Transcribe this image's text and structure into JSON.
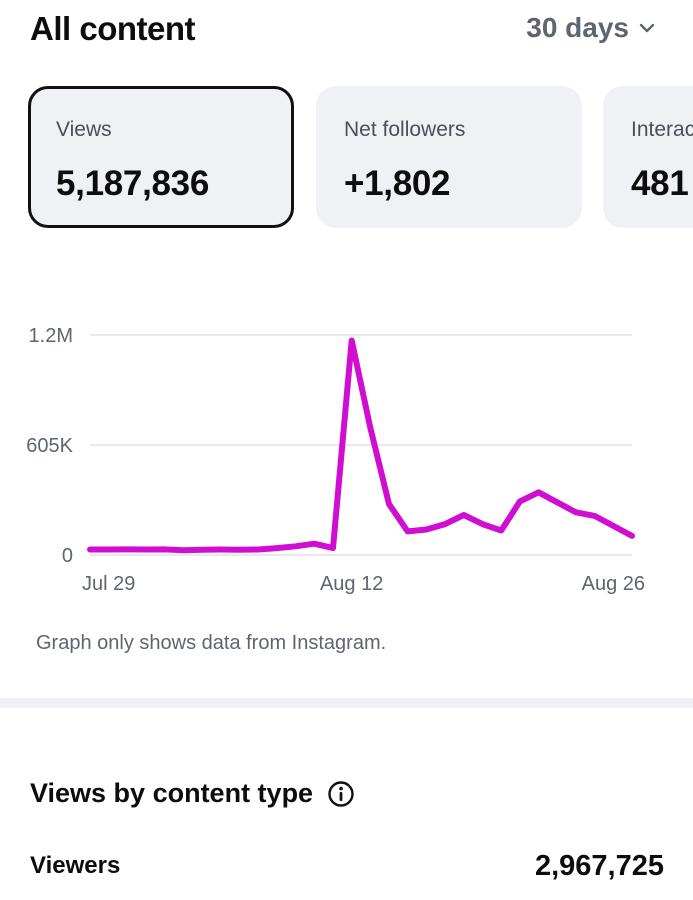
{
  "header": {
    "title": "All content",
    "range_label": "30 days"
  },
  "cards": [
    {
      "label": "Views",
      "value": "5,187,836",
      "selected": true
    },
    {
      "label": "Net followers",
      "value": "+1,802",
      "selected": false
    },
    {
      "label": "Interactions",
      "value": "481",
      "selected": false
    }
  ],
  "chart_data": {
    "type": "line",
    "series": [
      {
        "color": "#d00ed1",
        "values": [
          30000,
          30000,
          31000,
          30000,
          31000,
          26000,
          29000,
          30000,
          29000,
          30000,
          38000,
          48000,
          62000,
          38000,
          1180000,
          700000,
          280000,
          130000,
          140000,
          170000,
          220000,
          170000,
          135000,
          295000,
          345000,
          290000,
          235000,
          215000,
          160000,
          105000
        ]
      }
    ],
    "ytick_labels": [
      "0",
      "605K",
      "1.2M"
    ],
    "ytick_values": [
      0,
      605000,
      1210000
    ],
    "ylim": [
      0,
      1210000
    ],
    "xtick_labels": [
      "Jul 29",
      "Aug 12",
      "Aug 26"
    ],
    "xtick_indices": [
      1,
      14,
      28
    ],
    "grid": true
  },
  "chart_note": "Graph only shows data from Instagram.",
  "section": {
    "title": "Views by content type"
  },
  "viewers_row": {
    "label": "Viewers",
    "value": "2,967,725"
  },
  "icons": {
    "range_chevron": "chevron-down-icon",
    "info": "info-icon"
  }
}
